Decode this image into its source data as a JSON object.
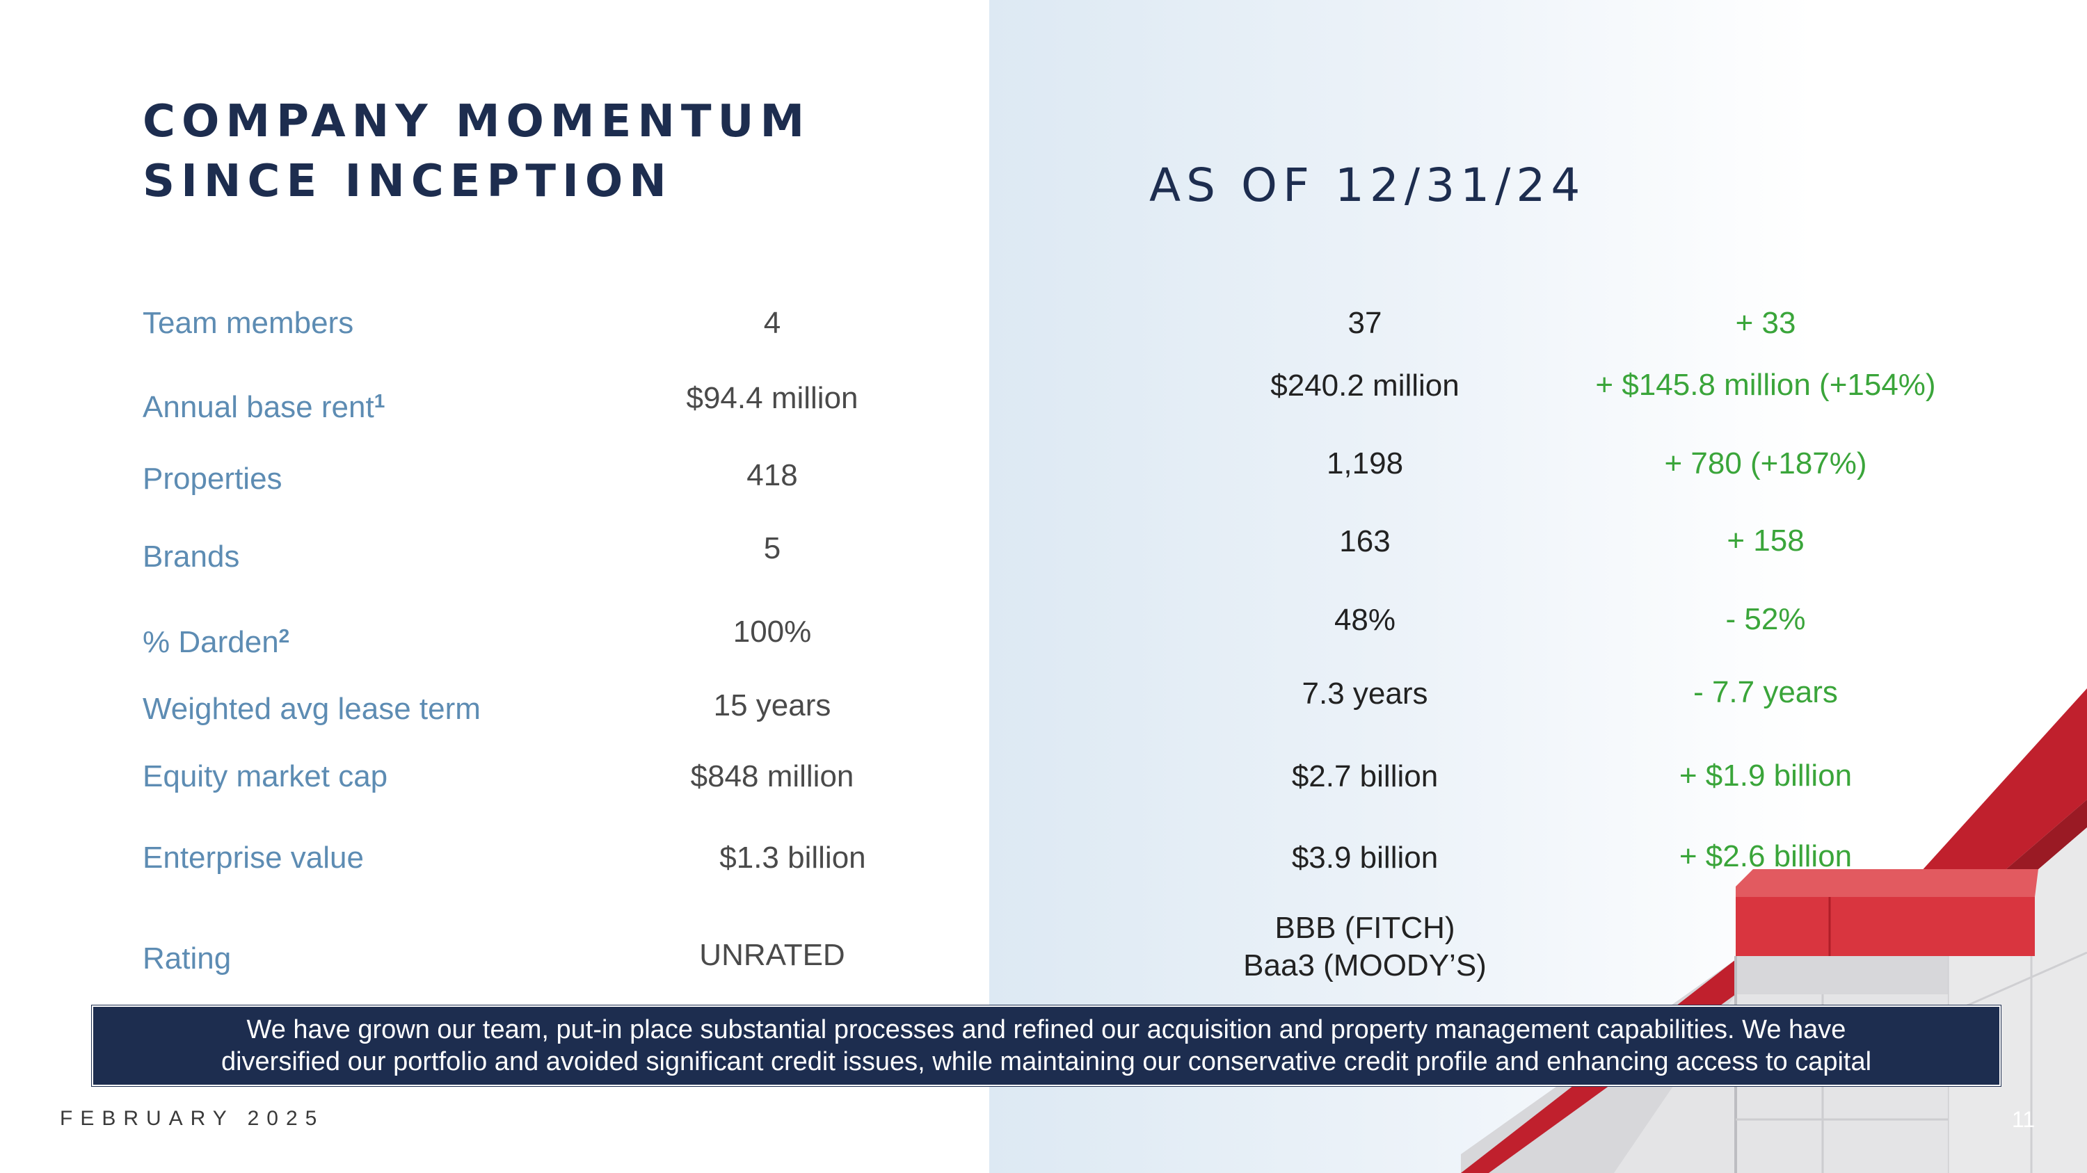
{
  "title": {
    "line1": "COMPANY MOMENTUM",
    "line2": "SINCE INCEPTION"
  },
  "as_of": "AS OF 12/31/24",
  "rows": [
    {
      "label": "Team members",
      "sup": "",
      "inception": "4",
      "current": "37",
      "change": "+ 33"
    },
    {
      "label": "Annual base rent",
      "sup": "1",
      "inception": "$94.4 million",
      "current": "$240.2 million",
      "change": "+ $145.8 million (+154%)"
    },
    {
      "label": "Properties",
      "sup": "",
      "inception": "418",
      "current": "1,198",
      "change": "+ 780 (+187%)"
    },
    {
      "label": "Brands",
      "sup": "",
      "inception": "5",
      "current": "163",
      "change": "+ 158"
    },
    {
      "label": "% Darden",
      "sup": "2",
      "inception": "100%",
      "current": "48%",
      "change": "- 52%"
    },
    {
      "label": "Weighted avg lease term",
      "sup": "",
      "inception": "15 years",
      "current": "7.3 years",
      "change": "- 7.7 years"
    },
    {
      "label": "Equity market cap",
      "sup": "",
      "inception": "$848 million",
      "current": "$2.7 billion",
      "change": "+ $1.9 billion"
    },
    {
      "label": "Enterprise value",
      "sup": "",
      "inception": "$1.3 billion",
      "current": "$3.9 billion",
      "change": "+ $2.6 billion"
    },
    {
      "label": "Rating",
      "sup": "",
      "inception": "UNRATED",
      "current_line1": "BBB (FITCH)",
      "current_line2": "Baa3 (MOODY’S)"
    }
  ],
  "banner": {
    "line1": "We have grown our team, put-in place substantial processes and refined our acquisition and property management capabilities. We have",
    "line2": "diversified our portfolio and avoided significant credit issues, while maintaining our conservative credit profile and enhancing access to capital"
  },
  "footer": {
    "date": "FEBRUARY 2025",
    "page": "11"
  },
  "colors": {
    "navy": "#1d2d4f",
    "label_blue": "#5d8cb3",
    "green": "#3aa53a",
    "red": "#c0202d"
  }
}
